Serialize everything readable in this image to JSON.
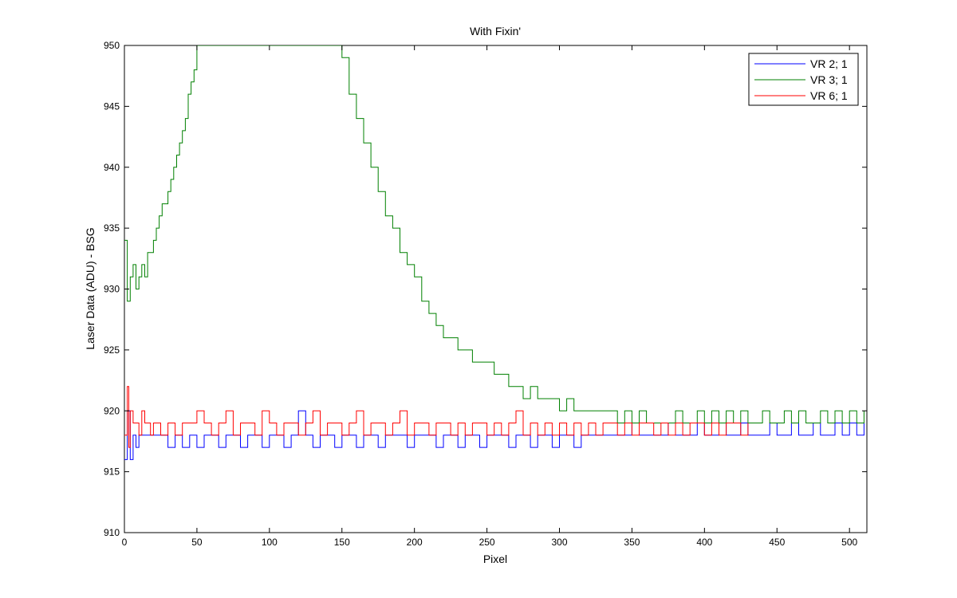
{
  "chart_data": {
    "type": "line",
    "title": "With Fixin'",
    "xlabel": "Pixel",
    "ylabel": "Laser Data (ADU) - BSG",
    "xlim": [
      0,
      512
    ],
    "ylim": [
      910,
      950
    ],
    "xticks": [
      "0",
      "50",
      "100",
      "150",
      "200",
      "250",
      "300",
      "350",
      "400",
      "450",
      "500"
    ],
    "yticks": [
      "910",
      "915",
      "920",
      "925",
      "930",
      "935",
      "940",
      "945",
      "950"
    ],
    "grid": false,
    "legend_position": "top-right",
    "series": [
      {
        "name": "VR  2; 1",
        "color": "#0000ff",
        "x": [
          0,
          2,
          4,
          6,
          8,
          10,
          12,
          14,
          16,
          18,
          20,
          25,
          30,
          35,
          40,
          45,
          50,
          55,
          60,
          65,
          70,
          75,
          80,
          85,
          90,
          95,
          100,
          105,
          110,
          115,
          120,
          125,
          130,
          135,
          140,
          145,
          150,
          155,
          160,
          165,
          170,
          175,
          180,
          185,
          190,
          195,
          200,
          205,
          210,
          215,
          220,
          225,
          230,
          235,
          240,
          245,
          250,
          255,
          260,
          265,
          270,
          275,
          280,
          285,
          290,
          295,
          300,
          305,
          310,
          315,
          320,
          325,
          330,
          335,
          340,
          345,
          350,
          355,
          360,
          365,
          370,
          375,
          380,
          385,
          390,
          395,
          400,
          405,
          410,
          415,
          420,
          425,
          430,
          435,
          440,
          445,
          450,
          455,
          460,
          465,
          470,
          475,
          480,
          485,
          490,
          495,
          500,
          505,
          510
        ],
        "y": [
          916,
          920,
          916,
          918,
          917,
          918,
          918,
          918,
          918,
          918,
          918,
          918,
          917,
          918,
          917,
          918,
          917,
          918,
          918,
          917,
          918,
          918,
          917,
          918,
          918,
          917,
          918,
          918,
          917,
          918,
          920,
          918,
          917,
          918,
          918,
          917,
          918,
          918,
          917,
          918,
          918,
          917,
          918,
          918,
          918,
          917,
          918,
          918,
          918,
          917,
          918,
          918,
          917,
          918,
          918,
          917,
          918,
          918,
          918,
          917,
          918,
          918,
          917,
          918,
          918,
          917,
          918,
          918,
          917,
          918,
          918,
          918,
          918,
          918,
          918,
          918,
          919,
          918,
          918,
          918,
          918,
          919,
          918,
          918,
          918,
          919,
          918,
          918,
          919,
          918,
          918,
          919,
          918,
          918,
          918,
          919,
          918,
          918,
          919,
          918,
          918,
          919,
          918,
          918,
          919,
          918,
          919,
          918,
          919
        ]
      },
      {
        "name": "VR  3; 1",
        "color": "#008000",
        "x": [
          0,
          2,
          4,
          6,
          8,
          10,
          12,
          14,
          16,
          18,
          20,
          22,
          24,
          26,
          28,
          30,
          32,
          34,
          36,
          38,
          40,
          42,
          44,
          46,
          48,
          50,
          148,
          150,
          155,
          160,
          165,
          170,
          175,
          180,
          185,
          190,
          195,
          200,
          205,
          210,
          215,
          220,
          225,
          230,
          235,
          240,
          245,
          250,
          255,
          260,
          265,
          270,
          275,
          280,
          285,
          290,
          295,
          300,
          305,
          310,
          315,
          320,
          325,
          330,
          335,
          340,
          345,
          350,
          355,
          360,
          365,
          370,
          375,
          380,
          385,
          390,
          395,
          400,
          405,
          410,
          415,
          420,
          425,
          430,
          435,
          440,
          445,
          450,
          455,
          460,
          465,
          470,
          475,
          480,
          485,
          490,
          495,
          500,
          505,
          510
        ],
        "y": [
          934,
          929,
          931,
          932,
          930,
          931,
          932,
          931,
          933,
          933,
          934,
          935,
          936,
          937,
          937,
          938,
          939,
          940,
          941,
          942,
          943,
          944,
          946,
          947,
          948,
          950,
          950,
          949,
          946,
          944,
          942,
          940,
          938,
          936,
          935,
          933,
          932,
          931,
          929,
          928,
          927,
          926,
          926,
          925,
          925,
          924,
          924,
          924,
          923,
          923,
          922,
          922,
          921,
          922,
          921,
          921,
          921,
          920,
          921,
          920,
          920,
          920,
          920,
          920,
          920,
          919,
          920,
          919,
          920,
          919,
          919,
          919,
          919,
          920,
          919,
          919,
          920,
          919,
          920,
          919,
          920,
          919,
          920,
          919,
          919,
          920,
          919,
          919,
          920,
          919,
          920,
          919,
          919,
          920,
          919,
          920,
          919,
          920,
          919,
          920
        ]
      },
      {
        "name": "VR  6; 1",
        "color": "#ff0000",
        "x": [
          0,
          2,
          3,
          4,
          6,
          8,
          10,
          12,
          14,
          16,
          18,
          20,
          25,
          30,
          35,
          40,
          45,
          50,
          55,
          60,
          65,
          70,
          75,
          80,
          85,
          90,
          95,
          100,
          105,
          110,
          115,
          120,
          125,
          130,
          135,
          140,
          145,
          150,
          155,
          160,
          165,
          170,
          175,
          180,
          185,
          190,
          195,
          200,
          205,
          210,
          215,
          220,
          225,
          230,
          235,
          240,
          245,
          250,
          255,
          260,
          265,
          270,
          275,
          280,
          285,
          290,
          295,
          300,
          305,
          310,
          315,
          320,
          325,
          330,
          335,
          340,
          345,
          350,
          355,
          360,
          365,
          370,
          375,
          380,
          385,
          390,
          395,
          400,
          405,
          410,
          415,
          420,
          425,
          430
        ],
        "y": [
          918,
          922,
          917,
          920,
          919,
          919,
          918,
          920,
          919,
          919,
          918,
          919,
          918,
          919,
          918,
          919,
          919,
          920,
          919,
          918,
          919,
          920,
          918,
          919,
          919,
          918,
          920,
          919,
          918,
          919,
          919,
          918,
          919,
          920,
          918,
          919,
          919,
          918,
          919,
          920,
          918,
          919,
          919,
          918,
          919,
          920,
          918,
          919,
          919,
          918,
          919,
          919,
          918,
          919,
          918,
          919,
          919,
          918,
          919,
          918,
          919,
          920,
          918,
          919,
          918,
          919,
          918,
          919,
          918,
          919,
          918,
          919,
          918,
          919,
          919,
          918,
          919,
          918,
          919,
          919,
          918,
          919,
          918,
          919,
          918,
          919,
          919,
          918,
          919,
          918,
          919,
          919,
          918,
          919
        ]
      }
    ]
  }
}
